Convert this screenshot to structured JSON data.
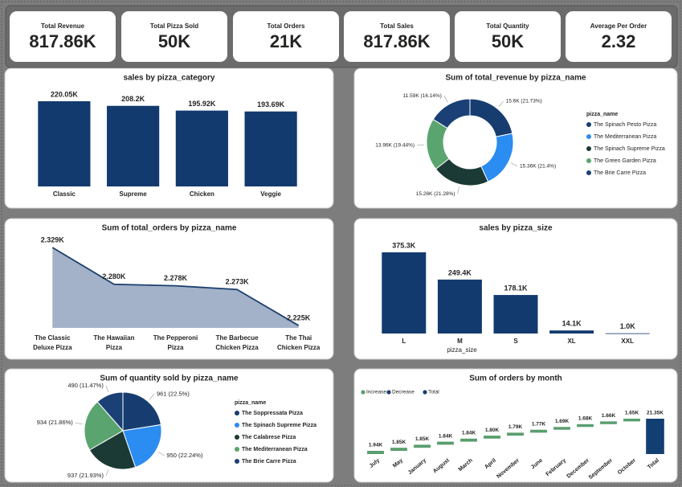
{
  "kpis": [
    {
      "title": "Total Revenue",
      "value": "817.86K"
    },
    {
      "title": "Total Pizza Sold",
      "value": "50K"
    },
    {
      "title": "Total Orders",
      "value": "21K"
    },
    {
      "title": "Total Sales",
      "value": "817.86K"
    },
    {
      "title": "Total Quantity",
      "value": "50K"
    },
    {
      "title": "Average Per Order",
      "value": "2.32"
    }
  ],
  "chart_data": [
    {
      "type": "bar",
      "title": "sales by pizza_category",
      "categories": [
        "Classic",
        "Supreme",
        "Chicken",
        "Veggie"
      ],
      "values": [
        220.05,
        208.2,
        195.92,
        193.69
      ],
      "value_labels": [
        "220.05K",
        "208.2K",
        "195.92K",
        "193.69K"
      ],
      "color": "#123a6e"
    },
    {
      "type": "donut",
      "title": "Sum of total_revenue by pizza_name",
      "legend_title": "pizza_name",
      "categories": [
        "The Spinach Pesto Pizza",
        "The Mediterranean Pizza",
        "The Spinach Supreme Pizza",
        "The Green Garden Pizza",
        "The Brie Carre Pizza"
      ],
      "values": [
        15.6,
        15.36,
        15.28,
        13.96,
        11.59
      ],
      "value_labels": [
        "15.6K (21.73%)",
        "15.36K (21.4%)",
        "15.28K (21.28%)",
        "13.96K (19.44%)",
        "11.59K (16.14%)"
      ],
      "colors": [
        "#173d70",
        "#2b8cf2",
        "#1b3a35",
        "#5aa56f",
        "#1a4076"
      ]
    },
    {
      "type": "area",
      "title": "Sum of total_orders by pizza_name",
      "categories": [
        "The Classic Deluxe Pizza",
        "The Hawaiian Pizza",
        "The Pepperoni Pizza",
        "The Barbecue Chicken Pizza",
        "The Thai Chicken Pizza"
      ],
      "values": [
        2.329,
        2.28,
        2.278,
        2.273,
        2.225
      ],
      "value_labels": [
        "2.329K",
        "2.280K",
        "2.278K",
        "2.273K",
        "2.225K"
      ],
      "color": "#1c3f6e",
      "fill": "#a3b2c8"
    },
    {
      "type": "bar",
      "title": "sales by pizza_size",
      "x_label": "pizza_size",
      "categories": [
        "L",
        "M",
        "S",
        "XL",
        "XXL"
      ],
      "values": [
        375.3,
        249.4,
        178.1,
        14.1,
        1.0
      ],
      "value_labels": [
        "375.3K",
        "249.4K",
        "178.1K",
        "14.1K",
        "1.0K"
      ],
      "color": "#123a6e"
    },
    {
      "type": "pie",
      "title": "Sum of quantity sold by pizza_name",
      "legend_title": "pizza_name",
      "categories": [
        "The Soppressata Pizza",
        "The Spinach Supreme Pizza",
        "The Calabrese Pizza",
        "The Mediterranean Pizza",
        "The Brie Carre Pizza"
      ],
      "values": [
        961,
        950,
        937,
        934,
        490
      ],
      "value_labels": [
        "961 (22.5%)",
        "950 (22.24%)",
        "937 (21.93%)",
        "934 (21.86%)",
        "490 (11.47%)"
      ],
      "colors": [
        "#173d70",
        "#2b8cf2",
        "#1b3a35",
        "#5aa56f",
        "#1a4076"
      ]
    },
    {
      "type": "waterfall",
      "title": "Sum of orders by month",
      "legend": [
        {
          "name": "Increase",
          "color": "#5a9e6f"
        },
        {
          "name": "Decrease",
          "color": "#1f3f73"
        },
        {
          "name": "Total",
          "color": "#123f72"
        }
      ],
      "categories": [
        "July",
        "May",
        "January",
        "August",
        "March",
        "April",
        "November",
        "June",
        "February",
        "December",
        "September",
        "October"
      ],
      "values": [
        1.94,
        1.85,
        1.85,
        1.84,
        1.84,
        1.8,
        1.79,
        1.77,
        1.69,
        1.68,
        1.66,
        1.65
      ],
      "value_labels": [
        "1.94K",
        "1.85K",
        "1.85K",
        "1.84K",
        "1.84K",
        "1.80K",
        "1.79K",
        "1.77K",
        "1.69K",
        "1.68K",
        "1.66K",
        "1.65K"
      ],
      "total": {
        "label": "Total",
        "value": 21.35,
        "value_label": "21.35K"
      }
    }
  ]
}
